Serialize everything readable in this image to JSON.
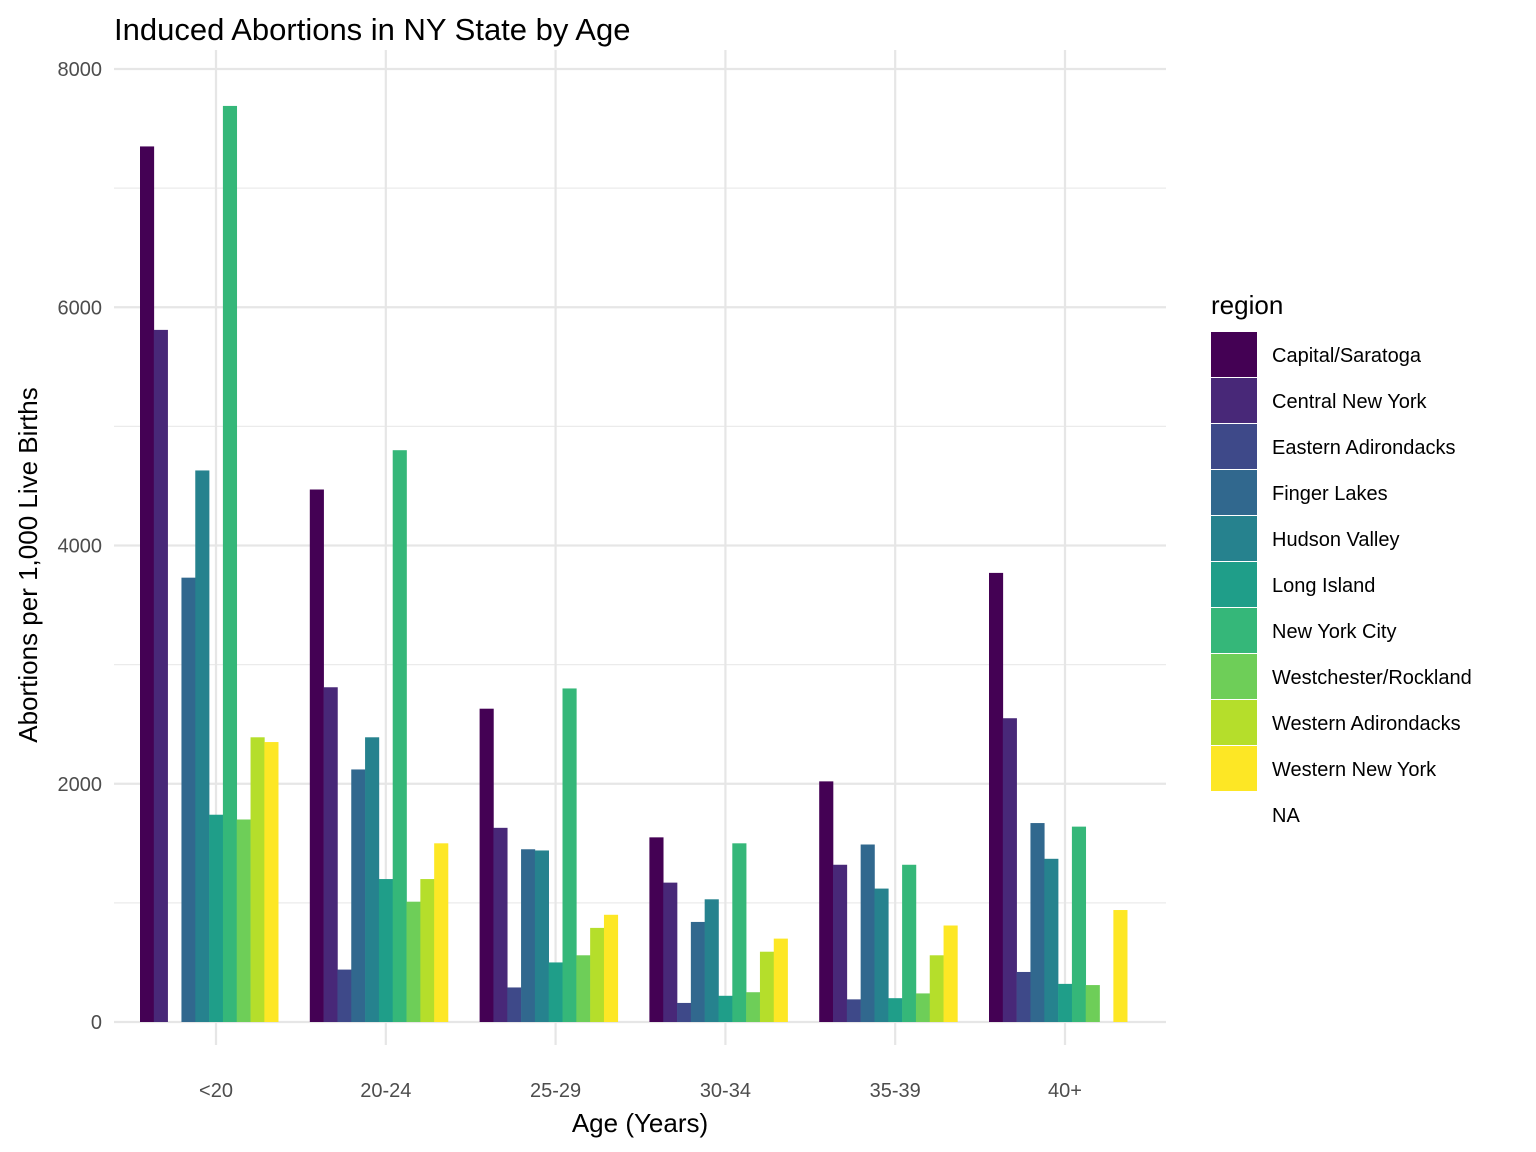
{
  "chart_data": {
    "type": "bar",
    "title": "Induced Abortions in NY State by Age",
    "xlabel": "Age (Years)",
    "ylabel": "Abortions per 1,000 Live Births",
    "categories": [
      "<20",
      "20-24",
      "25-29",
      "30-34",
      "35-39",
      "40+"
    ],
    "ylim": [
      0,
      8000
    ],
    "yticks": [
      0,
      2000,
      4000,
      6000,
      8000
    ],
    "grid": true,
    "legend": {
      "title": "region",
      "placement": "right",
      "entries": [
        "Capital/Saratoga",
        "Central New York",
        "Eastern Adirondacks",
        "Finger Lakes",
        "Hudson Valley",
        "Long Island",
        "New York City",
        "Westchester/Rockland",
        "Western Adirondacks",
        "Western New York",
        "NA"
      ]
    },
    "series": [
      {
        "name": "Capital/Saratoga",
        "color": "#440154",
        "values": [
          7350,
          4470,
          2630,
          1550,
          2020,
          3770
        ]
      },
      {
        "name": "Central New York",
        "color": "#482878",
        "values": [
          5810,
          2810,
          1630,
          1170,
          1320,
          2550
        ]
      },
      {
        "name": "Eastern Adirondacks",
        "color": "#3e4989",
        "values": [
          null,
          440,
          290,
          160,
          190,
          420
        ]
      },
      {
        "name": "Finger Lakes",
        "color": "#31688e",
        "values": [
          3730,
          2120,
          1450,
          840,
          1490,
          1670
        ]
      },
      {
        "name": "Hudson Valley",
        "color": "#26828e",
        "values": [
          4630,
          2390,
          1440,
          1030,
          1120,
          1370
        ]
      },
      {
        "name": "Long Island",
        "color": "#1f9e89",
        "values": [
          1740,
          1200,
          500,
          220,
          200,
          320
        ]
      },
      {
        "name": "New York City",
        "color": "#35b779",
        "values": [
          7690,
          4800,
          2800,
          1500,
          1320,
          1640
        ]
      },
      {
        "name": "Westchester/Rockland",
        "color": "#6ece58",
        "values": [
          1700,
          1010,
          560,
          250,
          240,
          310
        ]
      },
      {
        "name": "Western Adirondacks",
        "color": "#b5de2b",
        "values": [
          2390,
          1200,
          790,
          590,
          560,
          null
        ]
      },
      {
        "name": "Western New York",
        "color": "#fde725",
        "values": [
          2350,
          1500,
          900,
          700,
          810,
          940
        ]
      },
      {
        "name": "NA",
        "color": "#ffffff",
        "values": [
          null,
          null,
          null,
          null,
          null,
          null
        ]
      }
    ]
  }
}
